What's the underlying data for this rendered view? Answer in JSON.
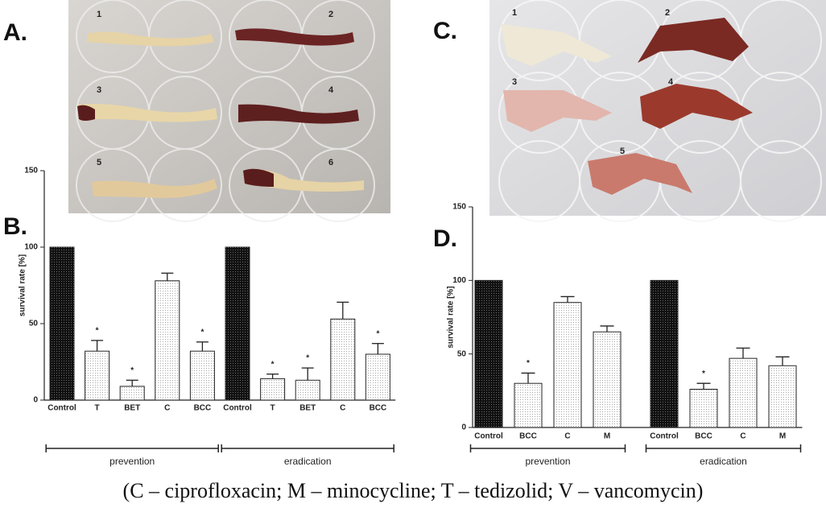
{
  "panel_labels": [
    "A.",
    "B.",
    "C.",
    "D."
  ],
  "photo_a_labels": [
    "1",
    "2",
    "3",
    "4",
    "5",
    "6"
  ],
  "photo_c_labels": [
    "1",
    "2",
    "3",
    "4",
    "5"
  ],
  "caption": "(C – ciprofloxacin; M – minocycline; T – tedizolid; V – vancomycin)",
  "chart_data": [
    {
      "type": "bar",
      "ylabel": "survival rate [%]",
      "categories": [
        "Control",
        "T",
        "BET",
        "C",
        "BCC",
        "Control",
        "T",
        "BET",
        "C",
        "BCC"
      ],
      "values": [
        100,
        32,
        9,
        78,
        32,
        100,
        14,
        13,
        53,
        30
      ],
      "errors": [
        null,
        7,
        4,
        5,
        6,
        null,
        3,
        8,
        11,
        7
      ],
      "significance": [
        null,
        "*",
        "*",
        null,
        "*",
        null,
        "*",
        "*",
        null,
        "*"
      ],
      "colors": [
        "#111111",
        "#ffffff",
        "#ffffff",
        "#ffffff",
        "#ffffff",
        "#111111",
        "#ffffff",
        "#ffffff",
        "#ffffff",
        "#ffffff"
      ],
      "groups": [
        "prevention",
        "eradication"
      ],
      "ylim": [
        0,
        150
      ],
      "yticks": [
        0,
        50,
        100,
        150
      ]
    },
    {
      "type": "bar",
      "ylabel": "survival rate [%]",
      "categories": [
        "Control",
        "BCC",
        "C",
        "M",
        "Control",
        "BCC",
        "C",
        "M"
      ],
      "values": [
        100,
        30,
        85,
        65,
        100,
        26,
        47,
        42
      ],
      "errors": [
        null,
        7,
        4,
        4,
        null,
        4,
        7,
        6
      ],
      "significance": [
        null,
        "*",
        null,
        null,
        null,
        "*",
        null,
        null
      ],
      "colors": [
        "#111111",
        "#ffffff",
        "#ffffff",
        "#ffffff",
        "#111111",
        "#ffffff",
        "#ffffff",
        "#ffffff"
      ],
      "groups": [
        "prevention",
        "eradication"
      ],
      "ylim": [
        0,
        150
      ],
      "yticks": [
        0,
        50,
        100,
        150
      ]
    }
  ]
}
